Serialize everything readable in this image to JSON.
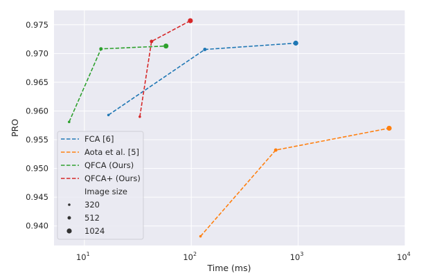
{
  "chart_data": {
    "type": "line",
    "title": "",
    "xlabel": "Time (ms)",
    "ylabel": "PRO",
    "xscale": "log",
    "xlim": [
      5.2,
      10000
    ],
    "ylim": [
      0.9366,
      0.9775
    ],
    "grid": true,
    "legend_position": "bottom-left",
    "xticks": [
      {
        "value": 10,
        "base": "10",
        "exp": "1"
      },
      {
        "value": 100,
        "base": "10",
        "exp": "2"
      },
      {
        "value": 1000,
        "base": "10",
        "exp": "3"
      },
      {
        "value": 10000,
        "base": "10",
        "exp": "4"
      }
    ],
    "yticks": [
      "0.940",
      "0.945",
      "0.950",
      "0.955",
      "0.960",
      "0.965",
      "0.970",
      "0.975"
    ],
    "size_legend_title": "Image size",
    "image_sizes": [
      "320",
      "512",
      "1024"
    ],
    "series": [
      {
        "name": "FCA [6]",
        "color": "#1f77b4",
        "x": [
          16.8,
          134,
          950
        ],
        "y": [
          0.9593,
          0.9707,
          0.9718
        ]
      },
      {
        "name": "Aota et al. [5]",
        "color": "#ff7f0e",
        "x": [
          122,
          617,
          7100
        ],
        "y": [
          0.9382,
          0.9532,
          0.957
        ]
      },
      {
        "name": "QFCA (Ours)",
        "color": "#2ca02c",
        "x": [
          7.2,
          14.3,
          58
        ],
        "y": [
          0.9581,
          0.9708,
          0.9713
        ]
      },
      {
        "name": "QFCA+ (Ours)",
        "color": "#d62728",
        "x": [
          33,
          42.5,
          98
        ],
        "y": [
          0.959,
          0.9721,
          0.9757
        ]
      }
    ]
  }
}
